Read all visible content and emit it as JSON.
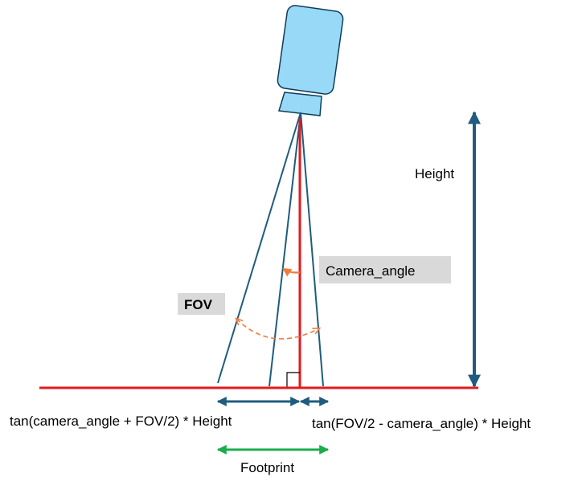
{
  "labels": {
    "height": "Height",
    "camera_angle": "Camera_angle",
    "fov": "FOV",
    "left_formula": "tan(camera_angle + FOV/2) * Height",
    "right_formula": "tan(FOV/2 - camera_angle) * Height",
    "footprint": "Footprint"
  },
  "colors": {
    "camera_body": "#97d9f6",
    "camera_outline": "#0f3c5a",
    "ground": "#e31a1c",
    "nadir": "#e31a1c",
    "rays": "#1f5c7f",
    "height_arrow": "#1f5c7f",
    "width_arrows": "#1f5c7f",
    "footprint_arrow": "#1aad4b",
    "angle_arcs": "#f07c3c",
    "label_box": "#d9d9d9"
  }
}
